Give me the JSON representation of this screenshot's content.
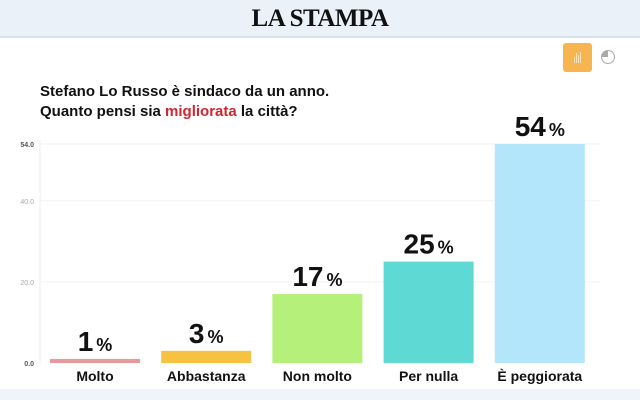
{
  "header": {
    "logo": "LA STAMPA"
  },
  "toolbar": {
    "bar_icon": "bar-chart-icon",
    "pie_icon": "pie-chart-icon"
  },
  "question": {
    "line1": "Stefano Lo Russo è sindaco da un anno.",
    "line2_pre": "Quanto pensi sia ",
    "line2_highlight": "migliorata",
    "line2_post": " la città?",
    "highlight_color": "#d0262f"
  },
  "chart_data": {
    "type": "bar",
    "title": "Stefano Lo Russo è sindaco da un anno. Quanto pensi sia migliorata la città?",
    "categories": [
      "Molto",
      "Abbastanza",
      "Non molto",
      "Per nulla",
      "È peggiorata"
    ],
    "values": [
      1,
      3,
      17,
      25,
      54
    ],
    "data_labels": [
      "1",
      "3",
      "17",
      "25",
      "54"
    ],
    "label_suffix": "%",
    "colors": [
      "#e89a9a",
      "#f5c242",
      "#b5f07a",
      "#5ed9d3",
      "#b3e6fa"
    ],
    "yticks": [
      "0.0",
      "20.0",
      "40.0",
      "54.0"
    ],
    "ytick_values": [
      0,
      20,
      40,
      54
    ],
    "ylim": [
      0,
      54
    ],
    "xlabel": "",
    "ylabel": "",
    "grid": true
  }
}
